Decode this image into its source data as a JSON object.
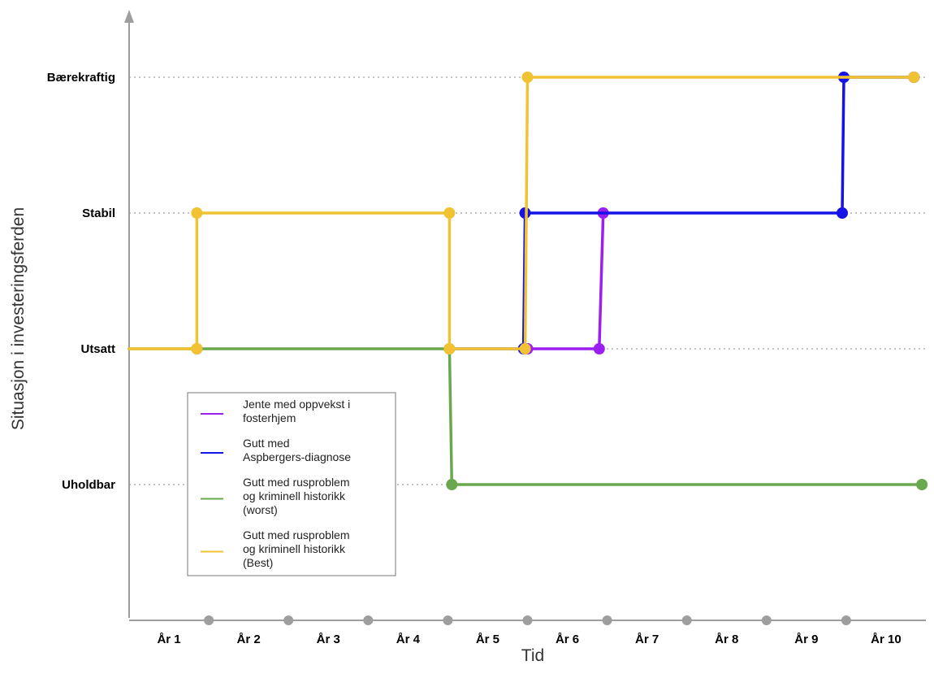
{
  "chart_data": {
    "type": "line",
    "title": "",
    "xlabel": "Tid",
    "ylabel": "Situasjon i investeringsferden",
    "categories": [
      "År 1",
      "År 2",
      "År 3",
      "År 4",
      "År 5",
      "År 6",
      "År 7",
      "År 8",
      "År 9",
      "År 10"
    ],
    "y_levels": [
      "Uholdbar",
      "Utsatt",
      "Stabil",
      "Bærekraftig"
    ],
    "ylim": [
      0,
      4
    ],
    "xlim": [
      0.5,
      10.5
    ],
    "grid": "horizontal dotted",
    "legend_position": "bottom-left",
    "x_boundary_markers": [
      1.5,
      2.5,
      3.5,
      4.5,
      5.5,
      6.5,
      7.5,
      8.5,
      9.5
    ],
    "series": [
      {
        "name": "Jente med oppvekst i fosterhjem",
        "color": "#9B1FF0",
        "points": [
          [
            5.5,
            2
          ],
          [
            6.4,
            2
          ],
          [
            6.45,
            3
          ]
        ],
        "markers": [
          [
            5.5,
            2
          ],
          [
            6.4,
            2
          ],
          [
            6.45,
            3
          ]
        ]
      },
      {
        "name": "Gutt med Aspbergers-diagnose",
        "color": "#1414E6",
        "points": [
          [
            4.5,
            2
          ],
          [
            5.45,
            2
          ],
          [
            5.47,
            3
          ],
          [
            9.45,
            3
          ],
          [
            9.47,
            4
          ],
          [
            10.35,
            4
          ]
        ],
        "markers": [
          [
            5.45,
            2
          ],
          [
            5.47,
            3
          ],
          [
            9.45,
            3
          ],
          [
            9.47,
            4
          ],
          [
            10.35,
            4
          ]
        ]
      },
      {
        "name": "Gutt med rusproblem og kriminell historikk (worst)",
        "color": "#6AA84F",
        "points": [
          [
            0.5,
            2
          ],
          [
            1.35,
            2
          ],
          [
            4.52,
            2
          ],
          [
            4.55,
            1
          ],
          [
            10.45,
            1
          ]
        ],
        "markers": [
          [
            1.35,
            2
          ],
          [
            4.52,
            2
          ],
          [
            4.55,
            1
          ],
          [
            10.45,
            1
          ]
        ]
      },
      {
        "name": "Gutt med rusproblem og kriminell historikk (Best)",
        "color": "#F1C232",
        "points": [
          [
            0.5,
            2
          ],
          [
            1.35,
            2
          ],
          [
            1.35,
            3
          ],
          [
            4.52,
            3
          ],
          [
            4.52,
            2
          ],
          [
            5.47,
            2
          ],
          [
            5.5,
            4
          ],
          [
            10.35,
            4
          ]
        ],
        "markers": [
          [
            1.35,
            2
          ],
          [
            1.35,
            3
          ],
          [
            4.52,
            3
          ],
          [
            4.52,
            2
          ],
          [
            5.47,
            2
          ],
          [
            5.5,
            4
          ],
          [
            10.35,
            4
          ]
        ]
      }
    ]
  },
  "legend": [
    {
      "lines": [
        "Jente med oppvekst i",
        "fosterhjem"
      ],
      "color": "#9B1FF0"
    },
    {
      "lines": [
        "Gutt med",
        "Aspbergers-diagnose"
      ],
      "color": "#1414E6"
    },
    {
      "lines": [
        "Gutt med rusproblem",
        "og kriminell historikk",
        "(worst)"
      ],
      "color": "#6AA84F"
    },
    {
      "lines": [
        "Gutt med rusproblem",
        "og kriminell historikk",
        "(Best)"
      ],
      "color": "#F1C232"
    }
  ]
}
